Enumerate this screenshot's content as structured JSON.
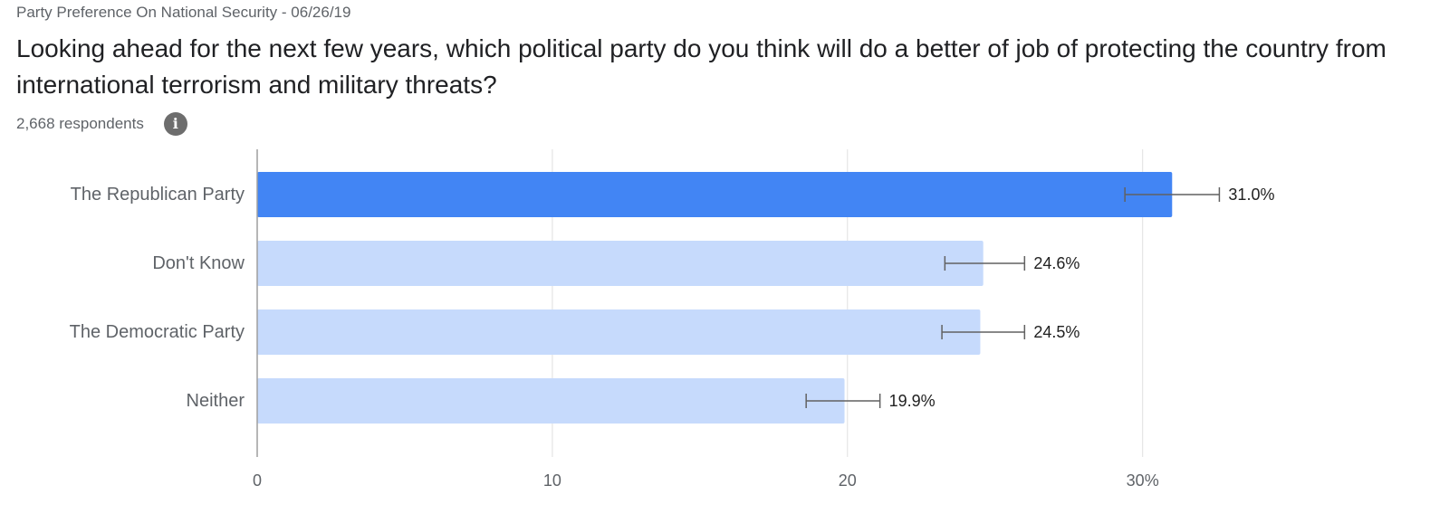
{
  "header": {
    "eyebrow": "Party Preference On National Security - 06/26/19",
    "question": "Looking ahead for the next few years, which political party do you think will do a better of job of protecting the country from international terrorism and military threats?",
    "respondents": "2,668 respondents",
    "info_icon": "info-icon"
  },
  "chart_data": {
    "type": "bar",
    "orientation": "horizontal",
    "categories": [
      "The Republican Party",
      "Don't Know",
      "The Democratic Party",
      "Neither"
    ],
    "values": [
      31.0,
      24.6,
      24.5,
      19.9
    ],
    "value_labels": [
      "31.0%",
      "24.6%",
      "24.5%",
      "19.9%"
    ],
    "error_bars": [
      {
        "low": 29.4,
        "high": 32.6
      },
      {
        "low": 23.3,
        "high": 26.0
      },
      {
        "low": 23.2,
        "high": 26.0
      },
      {
        "low": 18.6,
        "high": 21.1
      }
    ],
    "highlight_index": 0,
    "xlim": [
      0,
      39
    ],
    "xticks": [
      0,
      10,
      20,
      30
    ],
    "xtick_labels": [
      "0",
      "10",
      "20",
      "30%"
    ],
    "grid": true,
    "colors": {
      "highlight": "#4285f4",
      "bar": "#c6dafc",
      "grid": "#e0e0e0",
      "axis": "#9e9e9e",
      "error_bar": "#616161"
    }
  }
}
